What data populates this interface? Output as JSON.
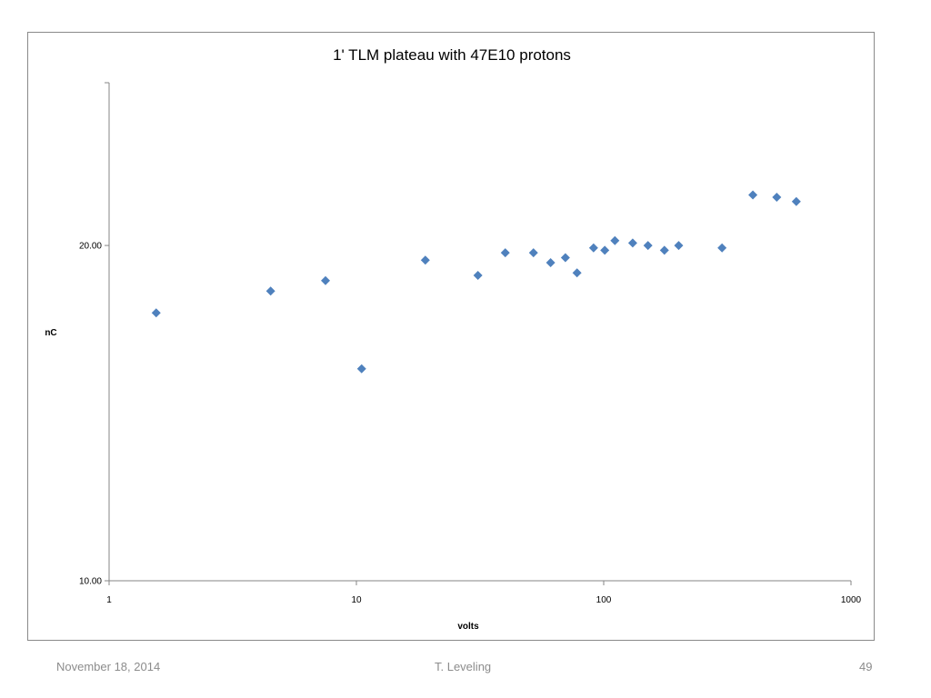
{
  "footer": {
    "date": "November 18, 2014",
    "author": "T. Leveling",
    "page": "49"
  },
  "chart_data": {
    "type": "scatter",
    "title": "1' TLM plateau with 47E10 protons",
    "xlabel": "volts",
    "ylabel": "nC",
    "x_scale": "log",
    "y_scale": "log",
    "xlim": [
      1,
      1000
    ],
    "ylim": [
      10,
      28
    ],
    "x_ticks": [
      1,
      10,
      100,
      1000
    ],
    "x_tick_labels": [
      "1",
      "10",
      "100",
      "1000"
    ],
    "y_ticks": [
      10,
      20
    ],
    "y_tick_labels": [
      "10.00",
      "20.00"
    ],
    "grid": false,
    "legend": "none",
    "marker_color": "#4f81bd",
    "series": [
      {
        "x": [
          1.55,
          4.5,
          7.5,
          10.5,
          19,
          31,
          40,
          52,
          61,
          70,
          78,
          91,
          101,
          111,
          131,
          151,
          176,
          201,
          301,
          401,
          501,
          601
        ],
        "y": [
          17.4,
          18.2,
          18.6,
          15.5,
          19.4,
          18.8,
          19.7,
          19.7,
          19.3,
          19.5,
          18.9,
          19.9,
          19.8,
          20.2,
          20.1,
          20.0,
          19.8,
          20.0,
          19.9,
          22.2,
          22.1,
          21.9
        ]
      }
    ]
  }
}
